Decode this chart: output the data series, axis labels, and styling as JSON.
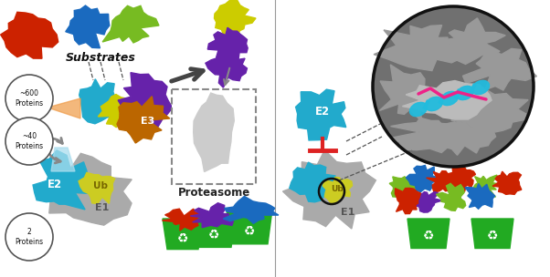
{
  "bg_color": "#ffffff",
  "left_panel": {
    "substrate_colors": [
      "#cc2200",
      "#1a6abf",
      "#77bb22",
      "#cccc00"
    ],
    "substrate_label": "Substrates",
    "e3_color": "#bb6600",
    "e3_label": "E3",
    "e2_color": "#22aacc",
    "e2_label": "E2",
    "ub_color": "#cccc22",
    "ub_label": "Ub",
    "e1_color": "#aaaaaa",
    "e1_label": "E1",
    "purple_color": "#6622aa",
    "label_600": "~600\nProteins",
    "label_40": "~40\nProteins",
    "label_2": "2\nProteins",
    "proteasome_label": "Proteasome",
    "bin_color": "#22aa22",
    "bin_fill_colors": [
      "#cc2200",
      "#6622aa",
      "#1a6abf"
    ],
    "arrow_color": "#555555",
    "fan_color": "#f0a050"
  },
  "right_panel": {
    "e2_color": "#22aacc",
    "e2_label": "E2",
    "ub_color": "#cccc22",
    "ub_label": "Ub",
    "e1_color": "#aaaaaa",
    "e1_label": "E1",
    "inhibit_color": "#dd2222",
    "helix_color": "#22bbdd",
    "groove_color": "#ee2288",
    "zoom_bg": "#888888",
    "bin_color": "#22aa22",
    "scatter_colors": [
      "#1a6abf",
      "#77bb22",
      "#cc2200",
      "#cc2200",
      "#77bb22",
      "#6622aa",
      "#77bb22",
      "#1a6abf"
    ]
  },
  "divider_color": "#999999"
}
